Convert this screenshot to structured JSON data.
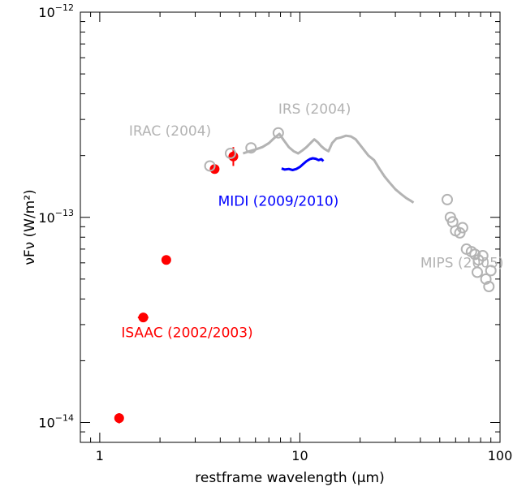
{
  "chart_data": {
    "type": "scatter",
    "title": "",
    "xlabel": "restframe wavelength (μm)",
    "ylabel": "νFν (W/m²)",
    "xscale": "log",
    "yscale": "log",
    "xlim": [
      0.8,
      100
    ],
    "ylim": [
      8e-15,
      1e-12
    ],
    "grid": false,
    "x_ticks": [
      {
        "value": 1,
        "label": "1"
      },
      {
        "value": 10,
        "label": "10"
      },
      {
        "value": 100,
        "label": "100"
      }
    ],
    "y_ticks": [
      {
        "value": 1e-14,
        "mantissa": "10",
        "exponent": "−14"
      },
      {
        "value": 1e-13,
        "mantissa": "10",
        "exponent": "−13"
      },
      {
        "value": 1e-12,
        "mantissa": "10",
        "exponent": "−12"
      }
    ],
    "colors": {
      "isaac": "#ff0000",
      "irac": "#b3b3b3",
      "irs": "#b3b3b3",
      "mips": "#b3b3b3",
      "midi": "#0000ff",
      "axes": "#000000"
    },
    "series": [
      {
        "key": "isaac",
        "name": "ISAAC (2002/2003)",
        "marker": "filled-circle",
        "points": [
          {
            "x": 1.25,
            "y": 1.05e-14,
            "yerr": [
              9.9e-15,
              1.11e-14
            ],
            "xerr": [
              1.2,
              1.3
            ]
          },
          {
            "x": 1.65,
            "y": 3.25e-14,
            "xerr": [
              1.55,
              1.75
            ]
          },
          {
            "x": 2.15,
            "y": 6.2e-14
          },
          {
            "x": 3.75,
            "y": 1.72e-13
          },
          {
            "x": 4.65,
            "y": 1.98e-13,
            "yerr": [
              1.78e-13,
              2.2e-13
            ]
          }
        ]
      },
      {
        "key": "irac",
        "name": "IRAC (2004)",
        "marker": "open-circle",
        "points": [
          {
            "x": 3.55,
            "y": 1.78e-13
          },
          {
            "x": 4.5,
            "y": 2.05e-13
          },
          {
            "x": 5.7,
            "y": 2.18e-13
          },
          {
            "x": 7.8,
            "y": 2.58e-13
          }
        ]
      },
      {
        "key": "irs",
        "name": "IRS (2004)",
        "style": "line",
        "points": [
          {
            "x": 5.2,
            "y": 2.05e-13
          },
          {
            "x": 5.6,
            "y": 2.1e-13
          },
          {
            "x": 6.0,
            "y": 2.14e-13
          },
          {
            "x": 6.5,
            "y": 2.2e-13
          },
          {
            "x": 7.0,
            "y": 2.3e-13
          },
          {
            "x": 7.5,
            "y": 2.45e-13
          },
          {
            "x": 7.9,
            "y": 2.55e-13
          },
          {
            "x": 8.3,
            "y": 2.38e-13
          },
          {
            "x": 8.8,
            "y": 2.2e-13
          },
          {
            "x": 9.3,
            "y": 2.1e-13
          },
          {
            "x": 9.8,
            "y": 2.05e-13
          },
          {
            "x": 10.3,
            "y": 2.12e-13
          },
          {
            "x": 10.8,
            "y": 2.2e-13
          },
          {
            "x": 11.3,
            "y": 2.3e-13
          },
          {
            "x": 11.8,
            "y": 2.4e-13
          },
          {
            "x": 12.3,
            "y": 2.32e-13
          },
          {
            "x": 12.8,
            "y": 2.22e-13
          },
          {
            "x": 13.3,
            "y": 2.15e-13
          },
          {
            "x": 13.9,
            "y": 2.1e-13
          },
          {
            "x": 14.5,
            "y": 2.3e-13
          },
          {
            "x": 15.2,
            "y": 2.42e-13
          },
          {
            "x": 16.0,
            "y": 2.45e-13
          },
          {
            "x": 17.0,
            "y": 2.5e-13
          },
          {
            "x": 18.0,
            "y": 2.48e-13
          },
          {
            "x": 19.0,
            "y": 2.4e-13
          },
          {
            "x": 20.0,
            "y": 2.25e-13
          },
          {
            "x": 21.0,
            "y": 2.12e-13
          },
          {
            "x": 22.0,
            "y": 2e-13
          },
          {
            "x": 23.5,
            "y": 1.9e-13
          },
          {
            "x": 25.0,
            "y": 1.72e-13
          },
          {
            "x": 26.5,
            "y": 1.58e-13
          },
          {
            "x": 28.0,
            "y": 1.48e-13
          },
          {
            "x": 30.0,
            "y": 1.37e-13
          },
          {
            "x": 32.0,
            "y": 1.3e-13
          },
          {
            "x": 34.0,
            "y": 1.24e-13
          },
          {
            "x": 36.0,
            "y": 1.2e-13
          },
          {
            "x": 37.0,
            "y": 1.18e-13
          }
        ]
      },
      {
        "key": "midi",
        "name": "MIDI (2009/2010)",
        "style": "line",
        "points": [
          {
            "x": 8.1,
            "y": 1.73e-13
          },
          {
            "x": 8.4,
            "y": 1.71e-13
          },
          {
            "x": 8.8,
            "y": 1.72e-13
          },
          {
            "x": 9.2,
            "y": 1.7e-13
          },
          {
            "x": 9.6,
            "y": 1.72e-13
          },
          {
            "x": 10.0,
            "y": 1.76e-13
          },
          {
            "x": 10.4,
            "y": 1.82e-13
          },
          {
            "x": 10.8,
            "y": 1.88e-13
          },
          {
            "x": 11.2,
            "y": 1.92e-13
          },
          {
            "x": 11.6,
            "y": 1.94e-13
          },
          {
            "x": 12.0,
            "y": 1.93e-13
          },
          {
            "x": 12.4,
            "y": 1.9e-13
          },
          {
            "x": 12.8,
            "y": 1.92e-13
          },
          {
            "x": 13.1,
            "y": 1.88e-13
          }
        ]
      },
      {
        "key": "mips",
        "name": "MIPS (2005)",
        "marker": "open-circle",
        "points": [
          {
            "x": 54.5,
            "y": 1.22e-13
          },
          {
            "x": 56.5,
            "y": 1e-13
          },
          {
            "x": 58.0,
            "y": 9.5e-14
          },
          {
            "x": 60.0,
            "y": 8.6e-14
          },
          {
            "x": 63.0,
            "y": 8.4e-14
          },
          {
            "x": 65.0,
            "y": 8.9e-14
          },
          {
            "x": 68.0,
            "y": 7e-14
          },
          {
            "x": 72.0,
            "y": 6.8e-14
          },
          {
            "x": 75.0,
            "y": 6.6e-14
          },
          {
            "x": 78.0,
            "y": 6.2e-14
          },
          {
            "x": 82.0,
            "y": 6.5e-14
          },
          {
            "x": 77.0,
            "y": 5.4e-14
          },
          {
            "x": 85.0,
            "y": 5e-14
          },
          {
            "x": 88.0,
            "y": 4.6e-14
          },
          {
            "x": 90.0,
            "y": 5.5e-14
          }
        ]
      }
    ],
    "annotations": [
      {
        "key": "irac",
        "text": "IRAC (2004)",
        "x": 1.4,
        "y": 2.5e-13
      },
      {
        "key": "irs",
        "text": "IRS (2004)",
        "x": 7.8,
        "y": 3.2e-13
      },
      {
        "key": "midi",
        "text": "MIDI (2009/2010)",
        "x": 3.9,
        "y": 1.14e-13
      },
      {
        "key": "mips",
        "text": "MIPS (2005)",
        "x": 40.0,
        "y": 5.7e-14
      },
      {
        "key": "isaac",
        "text": "ISAAC (2002/2003)",
        "x": 1.28,
        "y": 2.6e-14
      }
    ]
  }
}
